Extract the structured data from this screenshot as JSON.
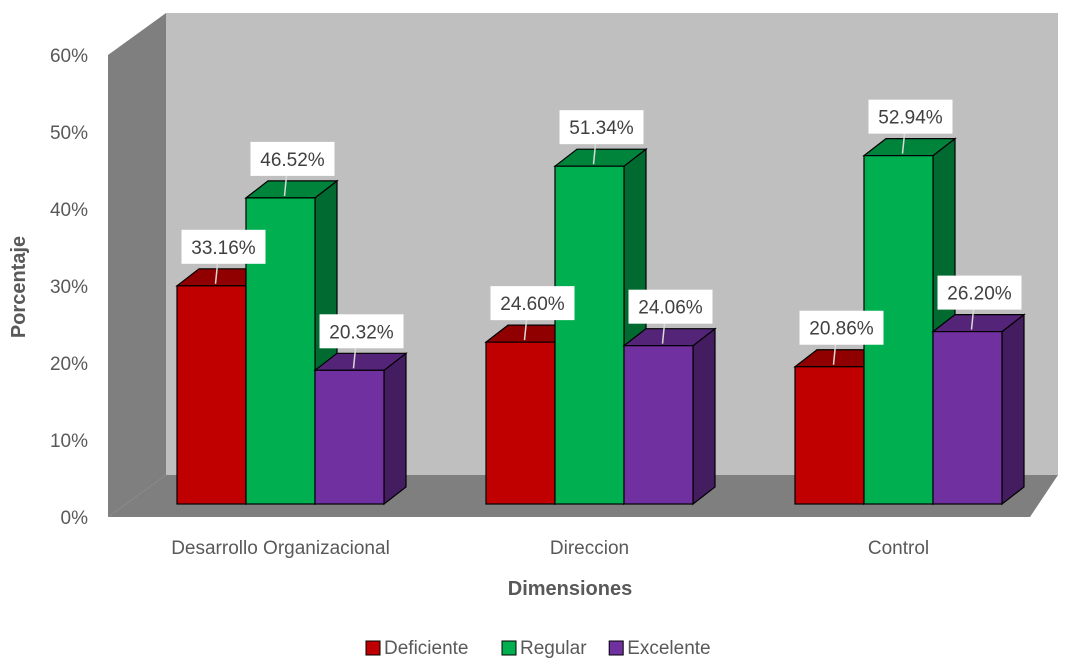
{
  "chart_data": {
    "type": "bar",
    "categories": [
      "Desarrollo Organizacional",
      "Direccion",
      "Control"
    ],
    "series": [
      {
        "name": "Deficiente",
        "values": [
          33.16,
          24.6,
          20.86
        ],
        "color": "#C00000"
      },
      {
        "name": "Regular",
        "values": [
          46.52,
          51.34,
          52.94
        ],
        "color": "#00B050"
      },
      {
        "name": "Excelente",
        "values": [
          20.32,
          24.06,
          26.2
        ],
        "color": "#7030A0"
      }
    ],
    "data_labels": [
      [
        "33.16%",
        "24.60%",
        "20.86%"
      ],
      [
        "46.52%",
        "51.34%",
        "52.94%"
      ],
      [
        "20.32%",
        "24.06%",
        "26.20%"
      ]
    ],
    "y_ticks": [
      "0%",
      "10%",
      "20%",
      "30%",
      "40%",
      "50%",
      "60%"
    ],
    "ylim": [
      0,
      60
    ],
    "xlabel": "Dimensiones",
    "ylabel": "Porcentaje",
    "legend_position": "bottom",
    "style": "3d-clustered-column",
    "wall_color": "#BFBFBF",
    "side_wall_color": "#7F7F7F",
    "floor_color": "#7F7F7F"
  }
}
